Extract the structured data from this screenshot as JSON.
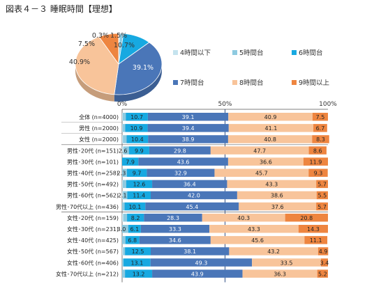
{
  "title": "図表４－３ 睡眠時間【理想】",
  "chart_data": [
    {
      "type": "pie",
      "categories": [
        "4時間以下",
        "5時間台",
        "6時間台",
        "7時間台",
        "8時間台",
        "9時間以上"
      ],
      "values": [
        0.3,
        1.5,
        10.7,
        39.1,
        40.9,
        7.5
      ],
      "value_labels": [
        "0.3%",
        "1.5%",
        "10.7%",
        "39.1%",
        "40.9%",
        "7.5%"
      ],
      "legend_placement": "right"
    },
    {
      "type": "bar",
      "orientation": "horizontal-stacked-100",
      "axis_ticks": [
        "0%",
        "50%",
        "100%"
      ],
      "xlim": [
        0,
        100
      ],
      "series_names": [
        "4時間以下",
        "5時間台",
        "6時間台",
        "7時間台",
        "8時間台",
        "9時間以上"
      ],
      "colors": [
        "#c5e3ee",
        "#8ecae0",
        "#17a9e1",
        "#4a76b8",
        "#f8c49a",
        "#ee8540"
      ],
      "rows": [
        {
          "label": "全体 (n=4000)",
          "values": [
            0.3,
            1.5,
            10.7,
            39.1,
            40.9,
            7.5
          ],
          "labels": [
            "",
            "",
            "10.7",
            "39.1",
            "40.9",
            "7.5"
          ]
        },
        {
          "label": "男性 (n=2000)",
          "values": [
            0.2,
            1.3,
            10.9,
            39.4,
            41.1,
            6.7
          ],
          "labels": [
            "",
            "",
            "10.9",
            "39.4",
            "41.1",
            "6.7"
          ]
        },
        {
          "label": "女性 (n=2000)",
          "values": [
            0.4,
            1.8,
            10.4,
            38.9,
            40.8,
            8.3
          ],
          "labels": [
            "",
            "",
            "10.4",
            "38.9",
            "40.8",
            "8.3"
          ]
        },
        {
          "label": "男性･20代 (n=151)",
          "values": [
            0.7,
            2.6,
            9.9,
            29.8,
            47.7,
            8.6
          ],
          "labels": [
            "",
            "2.6",
            "9.9",
            "29.8",
            "47.7",
            "8.6"
          ]
        },
        {
          "label": "男性･30代 (n=101)",
          "values": [
            0.0,
            0.0,
            7.9,
            43.6,
            36.6,
            11.9
          ],
          "labels": [
            "",
            "",
            "7.9",
            "43.6",
            "36.6",
            "11.9"
          ]
        },
        {
          "label": "男性･40代 (n=258)",
          "values": [
            0.0,
            2.3,
            9.7,
            32.9,
            45.7,
            9.3
          ],
          "labels": [
            "",
            "2.3",
            "9.7",
            "32.9",
            "45.7",
            "9.3"
          ]
        },
        {
          "label": "男性･50代 (n=492)",
          "values": [
            0.3,
            1.7,
            12.6,
            36.4,
            43.3,
            5.7
          ],
          "labels": [
            "",
            "",
            "12.6",
            "36.4",
            "43.3",
            "5.7"
          ]
        },
        {
          "label": "男性･60代 (n=562)",
          "values": [
            0.4,
            2.1,
            11.4,
            42.0,
            38.6,
            5.5
          ],
          "labels": [
            "",
            "2.1",
            "11.4",
            "42.0",
            "38.6",
            "5.5"
          ]
        },
        {
          "label": "男性･70代以上 (n=436)",
          "values": [
            0.0,
            1.2,
            10.1,
            45.4,
            37.6,
            5.7
          ],
          "labels": [
            "",
            "",
            "10.1",
            "45.4",
            "37.6",
            "5.7"
          ]
        },
        {
          "label": "女性･20代 (n=159)",
          "values": [
            0.6,
            1.8,
            8.2,
            28.3,
            40.3,
            20.8
          ],
          "labels": [
            "",
            "",
            "8.2",
            "28.3",
            "40.3",
            "20.8"
          ]
        },
        {
          "label": "女性･30代 (n=231)",
          "values": [
            0.0,
            3.0,
            6.1,
            33.3,
            43.3,
            14.3
          ],
          "labels": [
            "",
            "3.0",
            "6.1",
            "33.3",
            "43.3",
            "14.3"
          ]
        },
        {
          "label": "女性･40代 (n=425)",
          "values": [
            0.0,
            1.6,
            6.8,
            34.6,
            45.6,
            11.1
          ],
          "labels": [
            "",
            "",
            "6.8",
            "34.6",
            "45.6",
            "11.1"
          ]
        },
        {
          "label": "女性･50代 (n=567)",
          "values": [
            0.5,
            0.9,
            12.5,
            38.1,
            43.2,
            4.9
          ],
          "labels": [
            "",
            "",
            "12.5",
            "38.1",
            "43.2",
            "4.9"
          ]
        },
        {
          "label": "女性･60代 (n=406)",
          "values": [
            0.0,
            0.7,
            13.1,
            49.3,
            33.5,
            3.4
          ],
          "labels": [
            "",
            "",
            "13.1",
            "49.3",
            "33.5",
            "3.4"
          ]
        },
        {
          "label": "女性･70代以上 (n=212)",
          "values": [
            0.0,
            1.4,
            13.2,
            43.9,
            36.3,
            5.2
          ],
          "labels": [
            "",
            "",
            "13.2",
            "43.9",
            "36.3",
            "5.2"
          ]
        }
      ]
    }
  ]
}
